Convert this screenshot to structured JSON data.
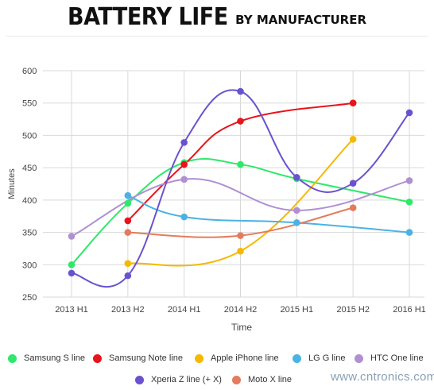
{
  "header": {
    "title_main": "BATTERY LIFE",
    "title_sub": "BY MANUFACTURER"
  },
  "chart_data": {
    "type": "line",
    "xlabel": "Time",
    "ylabel": "Minutes",
    "categories": [
      "2013 H1",
      "2013 H2",
      "2014 H1",
      "2014 H2",
      "2015 H1",
      "2015 H2",
      "2016 H1"
    ],
    "ylim": [
      250,
      600
    ],
    "yticks": [
      250,
      300,
      350,
      400,
      450,
      500,
      550,
      600
    ],
    "grid": true,
    "legend_position": "bottom",
    "series": [
      {
        "name": "Samsung S line",
        "color": "#2ee86a",
        "values": [
          300,
          395,
          458,
          455,
          433,
          null,
          397
        ]
      },
      {
        "name": "Samsung Note line",
        "color": "#e8141c",
        "values": [
          null,
          368,
          455,
          522,
          null,
          550,
          null
        ]
      },
      {
        "name": "Apple iPhone line",
        "color": "#f6b800",
        "values": [
          null,
          302,
          null,
          321,
          null,
          494,
          null
        ]
      },
      {
        "name": "LG G line",
        "color": "#4ab3e4",
        "values": [
          null,
          407,
          374,
          null,
          365,
          null,
          350
        ]
      },
      {
        "name": "HTC One line",
        "color": "#b08fd2",
        "values": [
          344,
          null,
          432,
          null,
          384,
          null,
          430
        ]
      },
      {
        "name": "Xperia Z line (+ X)",
        "color": "#6a52cf",
        "values": [
          287,
          283,
          489,
          568,
          435,
          426,
          535
        ]
      },
      {
        "name": "Moto X line",
        "color": "#e57b5c",
        "values": [
          null,
          350,
          null,
          345,
          null,
          388,
          null
        ]
      }
    ]
  },
  "watermark": "www.cntronics.com"
}
